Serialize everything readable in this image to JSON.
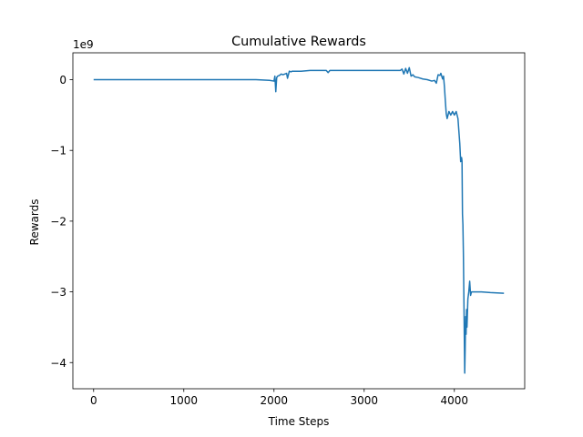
{
  "chart_data": {
    "type": "line",
    "title": "Cumulative Rewards",
    "xlabel": "Time Steps",
    "ylabel": "Rewards",
    "y_scale_label": "1e9",
    "y_scale": 1000000000,
    "xlim": [
      -230,
      4780
    ],
    "ylim": [
      -4.37,
      0.38
    ],
    "x_ticks": [
      0,
      1000,
      2000,
      3000,
      4000
    ],
    "x_tick_labels": [
      "0",
      "1000",
      "2000",
      "3000",
      "4000"
    ],
    "y_ticks": [
      0,
      -1,
      -2,
      -3,
      -4
    ],
    "y_tick_labels": [
      "0",
      "−1",
      "−2",
      "−3",
      "−4"
    ],
    "grid": false,
    "line_color": "#1f77b4",
    "series": [
      {
        "x": [
          0,
          500,
          1000,
          1500,
          1800,
          1950,
          2000,
          2010,
          2020,
          2030,
          2040,
          2060,
          2080,
          2100,
          2120,
          2140,
          2150,
          2170,
          2190,
          2200,
          2230,
          2260,
          2300,
          2400,
          2500,
          2580,
          2600,
          2620,
          2700,
          2800,
          3000,
          3200,
          3400,
          3420,
          3440,
          3460,
          3480,
          3500,
          3520,
          3540,
          3560,
          3600,
          3650,
          3700,
          3750,
          3780,
          3800,
          3820,
          3840,
          3850,
          3860,
          3870,
          3880,
          3890,
          3900,
          3910,
          3920,
          3940,
          3960,
          3980,
          4000,
          4020,
          4040,
          4060,
          4070,
          4080,
          4085,
          4090,
          4095,
          4100,
          4105,
          4110,
          4115,
          4120,
          4125,
          4130,
          4135,
          4140,
          4145,
          4150,
          4160,
          4170,
          4180,
          4190,
          4200,
          4250,
          4300,
          4400,
          4550
        ],
        "y": [
          0,
          0,
          0,
          0,
          0.0,
          -0.01,
          -0.02,
          0.05,
          -0.17,
          0.03,
          0.05,
          0.06,
          0.08,
          0.07,
          0.08,
          0.09,
          0.02,
          0.12,
          0.11,
          0.12,
          0.12,
          0.12,
          0.12,
          0.13,
          0.13,
          0.13,
          0.1,
          0.13,
          0.13,
          0.13,
          0.13,
          0.13,
          0.13,
          0.15,
          0.08,
          0.16,
          0.09,
          0.17,
          0.05,
          0.07,
          0.04,
          0.03,
          0.01,
          0.0,
          -0.02,
          -0.01,
          -0.05,
          0.07,
          0.06,
          0.09,
          0.05,
          0.01,
          0.05,
          -0.1,
          -0.3,
          -0.48,
          -0.55,
          -0.45,
          -0.5,
          -0.45,
          -0.5,
          -0.45,
          -0.55,
          -0.9,
          -1.16,
          -1.1,
          -1.15,
          -1.9,
          -2.05,
          -2.45,
          -3.0,
          -3.6,
          -4.15,
          -3.8,
          -3.35,
          -3.6,
          -3.25,
          -3.5,
          -3.3,
          -3.1,
          -3.0,
          -2.85,
          -3.05,
          -3.0,
          -3.0,
          -3.0,
          -3.0,
          -3.01,
          -3.02
        ]
      }
    ]
  }
}
